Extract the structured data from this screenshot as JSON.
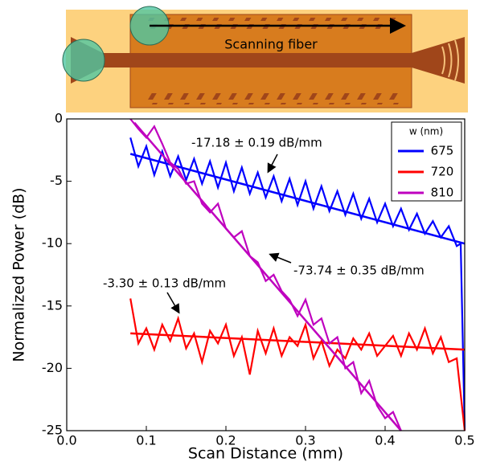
{
  "diagram": {
    "label": "Scanning fiber"
  },
  "chart_data": {
    "type": "line",
    "xlabel": "Scan Distance (mm)",
    "ylabel": "Normalized Power (dB)",
    "xlim": [
      0,
      0.5
    ],
    "ylim": [
      -25,
      0
    ],
    "xticks": [
      {
        "value": 0,
        "label": "0.0"
      },
      0.1,
      0.2,
      0.3,
      0.4,
      0.5
    ],
    "yticks": [
      -25,
      -20,
      -15,
      -10,
      -5,
      0
    ],
    "legend_title": "w (nm)",
    "legend": "upper right",
    "annotations": [
      "-17.18 ± 0.19 dB/mm",
      "-73.74 ± 0.35 dB/mm",
      "-3.30 ± 0.13 dB/mm"
    ],
    "series": [
      {
        "name": "675",
        "color": "#0000ff",
        "x": [
          0.08,
          0.09,
          0.1,
          0.11,
          0.12,
          0.13,
          0.14,
          0.15,
          0.16,
          0.17,
          0.18,
          0.19,
          0.2,
          0.21,
          0.22,
          0.23,
          0.24,
          0.25,
          0.26,
          0.27,
          0.28,
          0.29,
          0.3,
          0.31,
          0.32,
          0.33,
          0.34,
          0.35,
          0.36,
          0.37,
          0.38,
          0.39,
          0.4,
          0.41,
          0.42,
          0.43,
          0.44,
          0.45,
          0.46,
          0.47,
          0.48,
          0.49,
          0.495,
          0.5
        ],
        "values": [
          -1.5,
          -3.8,
          -2.2,
          -4.5,
          -2.6,
          -4.6,
          -3.0,
          -4.9,
          -3.2,
          -5.2,
          -3.4,
          -5.5,
          -3.5,
          -5.8,
          -3.9,
          -6.0,
          -4.3,
          -6.3,
          -4.6,
          -6.6,
          -4.8,
          -6.9,
          -5.0,
          -7.2,
          -5.4,
          -7.4,
          -5.8,
          -7.7,
          -6.0,
          -8.0,
          -6.4,
          -8.3,
          -6.8,
          -8.6,
          -7.2,
          -8.9,
          -7.6,
          -9.2,
          -8.2,
          -9.5,
          -8.6,
          -10.2,
          -10.0,
          -25
        ],
        "fit": {
          "x": [
            0.08,
            0.5
          ],
          "values": [
            -2.8,
            -10
          ]
        }
      },
      {
        "name": "720",
        "color": "#ff0000",
        "x": [
          0.08,
          0.09,
          0.1,
          0.11,
          0.12,
          0.13,
          0.14,
          0.15,
          0.16,
          0.17,
          0.18,
          0.19,
          0.2,
          0.21,
          0.22,
          0.23,
          0.24,
          0.25,
          0.26,
          0.27,
          0.28,
          0.29,
          0.3,
          0.31,
          0.32,
          0.33,
          0.34,
          0.35,
          0.36,
          0.37,
          0.38,
          0.39,
          0.4,
          0.41,
          0.42,
          0.43,
          0.44,
          0.45,
          0.46,
          0.47,
          0.48,
          0.49,
          0.5
        ],
        "values": [
          -14.4,
          -18.0,
          -16.8,
          -18.5,
          -16.5,
          -17.8,
          -16.0,
          -18.4,
          -17.2,
          -19.5,
          -17.0,
          -18.0,
          -16.5,
          -19.0,
          -17.5,
          -20.5,
          -17.0,
          -18.8,
          -16.8,
          -19.0,
          -17.5,
          -18.2,
          -16.5,
          -19.2,
          -17.8,
          -19.8,
          -18.5,
          -19.2,
          -17.6,
          -18.5,
          -17.2,
          -19.0,
          -18.2,
          -17.4,
          -19.0,
          -17.2,
          -18.5,
          -16.8,
          -18.8,
          -17.5,
          -19.5,
          -19.2,
          -25
        ],
        "fit": {
          "x": [
            0.08,
            0.5
          ],
          "values": [
            -17.2,
            -18.5
          ]
        }
      },
      {
        "name": "810",
        "color": "#bf00bf",
        "x": [
          0.08,
          0.09,
          0.1,
          0.11,
          0.12,
          0.13,
          0.14,
          0.15,
          0.16,
          0.17,
          0.18,
          0.19,
          0.2,
          0.21,
          0.22,
          0.23,
          0.24,
          0.25,
          0.26,
          0.27,
          0.28,
          0.29,
          0.3,
          0.31,
          0.32,
          0.33,
          0.34,
          0.35,
          0.36,
          0.37,
          0.38,
          0.39,
          0.4,
          0.41,
          0.42
        ],
        "values": [
          0,
          -0.8,
          -1.5,
          -0.6,
          -2.0,
          -3.5,
          -4.0,
          -5.2,
          -5.0,
          -6.8,
          -7.5,
          -6.8,
          -8.8,
          -9.5,
          -9.0,
          -11.0,
          -11.5,
          -13.0,
          -12.5,
          -13.8,
          -14.5,
          -15.8,
          -14.5,
          -16.5,
          -16.0,
          -18.0,
          -17.5,
          -20.0,
          -19.5,
          -22.0,
          -21.0,
          -23.0,
          -24.0,
          -23.5,
          -25.0
        ],
        "fit": {
          "x": [
            0.085,
            0.42
          ],
          "values": [
            -0.3,
            -25
          ]
        }
      }
    ]
  }
}
